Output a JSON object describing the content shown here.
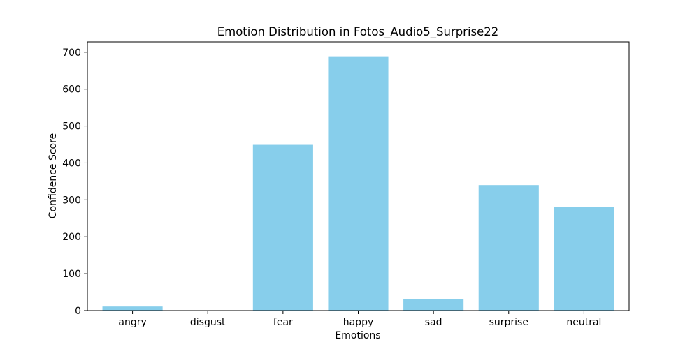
{
  "chart_data": {
    "type": "bar",
    "title": "Emotion Distribution in Fotos_Audio5_Surprise22",
    "xlabel": "Emotions",
    "ylabel": "Confidence Score",
    "categories": [
      "angry",
      "disgust",
      "fear",
      "happy",
      "sad",
      "surprise",
      "neutral"
    ],
    "values": [
      11,
      0,
      449,
      689,
      32,
      340,
      280
    ],
    "ylim": [
      0,
      728
    ],
    "yticks": [
      0,
      100,
      200,
      300,
      400,
      500,
      600,
      700
    ],
    "grid": false,
    "legend": "none",
    "bar_color": "#87ceeb",
    "axis_color": "#000000"
  }
}
